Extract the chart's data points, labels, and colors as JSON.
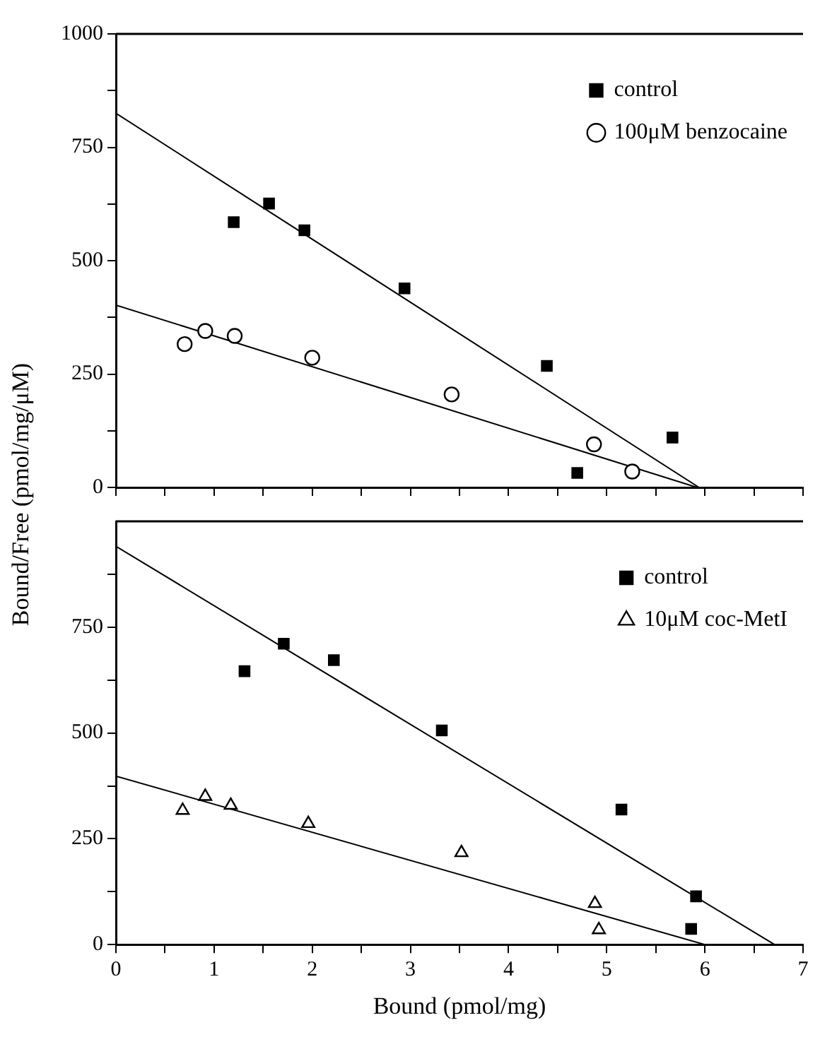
{
  "chart_data": [
    {
      "type": "scatter",
      "ylabel": "Bound/Free (pmol/mg/μM)",
      "xlim": [
        0,
        7
      ],
      "ylim": [
        0,
        1000
      ],
      "xticks": [
        0,
        {
          "value": 0.5,
          "label": null
        },
        1,
        {
          "value": 1.5,
          "label": null
        },
        2,
        {
          "value": 2.5,
          "label": null
        },
        3,
        {
          "value": 3.5,
          "label": null
        },
        4,
        {
          "value": 4.5,
          "label": null
        },
        5,
        {
          "value": 5.5,
          "label": null
        },
        6,
        {
          "value": 6.5,
          "label": null
        },
        7
      ],
      "yticks": [
        0,
        {
          "value": 125,
          "label": null
        },
        250,
        {
          "value": 375,
          "label": null
        },
        500,
        {
          "value": 625,
          "label": null
        },
        750,
        {
          "value": 875,
          "label": null
        },
        1000
      ],
      "tick_labels": "y",
      "legend": "top right",
      "grid": false,
      "series": [
        {
          "name": "control",
          "type": "scatter",
          "marker": "square",
          "color": "#000000",
          "x": [
            1.2,
            1.56,
            1.92,
            2.94,
            4.39,
            4.7,
            5.67
          ],
          "values": [
            585,
            626,
            567,
            439,
            268,
            32,
            110
          ]
        },
        {
          "name": "100μM benzocaine",
          "type": "scatter",
          "marker": "circle",
          "color": "#000000",
          "x": [
            0.7,
            0.91,
            1.21,
            2.0,
            3.42,
            4.87,
            5.26
          ],
          "values": [
            316,
            345,
            334,
            286,
            205,
            95,
            35
          ]
        },
        {
          "type": "line",
          "marker": "none",
          "color": "#000000",
          "x": [
            0,
            5.94
          ],
          "values": [
            825,
            0
          ]
        },
        {
          "type": "line",
          "marker": "none",
          "color": "#000000",
          "x": [
            0,
            5.92
          ],
          "values": [
            402,
            0
          ]
        }
      ]
    },
    {
      "type": "scatter",
      "xlabel": "Bound (pmol/mg)",
      "xlim": [
        0,
        7
      ],
      "ylim": [
        0,
        1000
      ],
      "xticks": [
        0,
        {
          "value": 0.5,
          "label": null
        },
        1,
        {
          "value": 1.5,
          "label": null
        },
        2,
        {
          "value": 2.5,
          "label": null
        },
        3,
        {
          "value": 3.5,
          "label": null
        },
        4,
        {
          "value": 4.5,
          "label": null
        },
        5,
        {
          "value": 5.5,
          "label": null
        },
        6,
        {
          "value": 6.5,
          "label": null
        },
        7
      ],
      "yticks": [
        0,
        {
          "value": 125,
          "label": null
        },
        250,
        {
          "value": 375,
          "label": null
        },
        500,
        {
          "value": 625,
          "label": null
        },
        750,
        {
          "value": 875,
          "label": null
        }
      ],
      "legend": "top right",
      "grid": false,
      "series": [
        {
          "name": "control",
          "type": "scatter",
          "marker": "square",
          "color": "#000000",
          "x": [
            1.31,
            1.71,
            2.22,
            3.32,
            5.15,
            5.91,
            5.86
          ],
          "values": [
            646,
            711,
            672,
            506,
            319,
            114,
            37
          ]
        },
        {
          "name": "10μM coc-MetI",
          "type": "scatter",
          "marker": "triangle",
          "color": "#000000",
          "x": [
            0.68,
            0.91,
            1.17,
            1.96,
            3.52,
            4.88,
            4.92
          ],
          "values": [
            317,
            350,
            329,
            286,
            217,
            97,
            35
          ]
        },
        {
          "type": "line",
          "marker": "none",
          "color": "#000000",
          "x": [
            0,
            6.71
          ],
          "values": [
            941,
            0
          ]
        },
        {
          "type": "line",
          "marker": "none",
          "color": "#000000",
          "x": [
            0,
            6.0
          ],
          "values": [
            398,
            0
          ]
        }
      ]
    }
  ]
}
